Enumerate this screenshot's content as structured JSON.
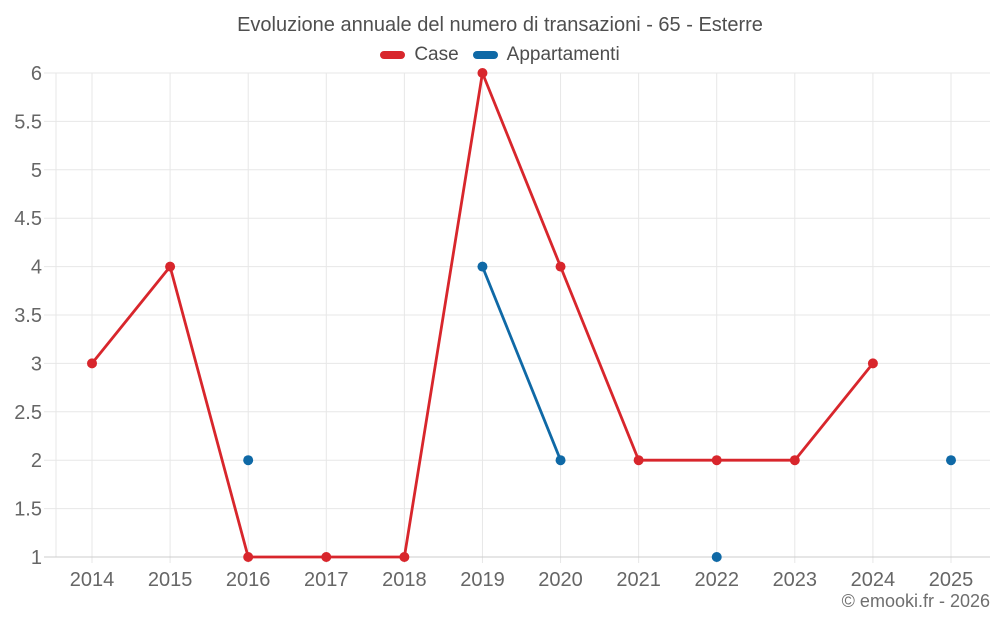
{
  "chart_data": {
    "type": "line",
    "title": "Evoluzione annuale del numero di transazioni - 65 - Esterre",
    "x": [
      2014,
      2015,
      2016,
      2017,
      2018,
      2019,
      2020,
      2021,
      2022,
      2023,
      2024,
      2025
    ],
    "series": [
      {
        "name": "Case",
        "color": "#d8262c",
        "values": [
          3,
          4,
          1,
          1,
          1,
          6,
          4,
          2,
          2,
          2,
          3,
          null
        ]
      },
      {
        "name": "Appartamenti",
        "color": "#0f69a6",
        "values": [
          null,
          null,
          2,
          null,
          null,
          4,
          2,
          null,
          1,
          null,
          null,
          2
        ]
      }
    ],
    "ylim": [
      1,
      6
    ],
    "ytick_step": 0.5,
    "xlabel": "",
    "ylabel": "",
    "legend_position": "top",
    "grid": true,
    "grid_color": "#e7e7e7",
    "axis_line_color": "#cccccc",
    "tick_label_color": "#666666"
  },
  "footer": {
    "copyright": "© emooki.fr - 2026"
  }
}
